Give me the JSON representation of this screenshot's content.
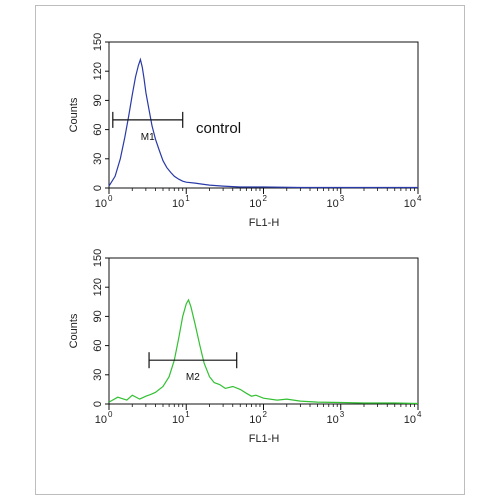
{
  "chart_data": [
    {
      "type": "line",
      "title": "",
      "xlabel": "FL1-H",
      "ylabel": "Counts",
      "xscale": "log",
      "xlim": [
        1,
        10000
      ],
      "ylim": [
        0,
        150
      ],
      "yticks": [
        0,
        30,
        60,
        90,
        120,
        150
      ],
      "xticks": [
        {
          "base": "10",
          "exp": "0"
        },
        {
          "base": "10",
          "exp": "1"
        },
        {
          "base": "10",
          "exp": "2"
        },
        {
          "base": "10",
          "exp": "3"
        },
        {
          "base": "10",
          "exp": "4"
        }
      ],
      "color": "#2a3aa8",
      "annotation": "control",
      "gate": {
        "label": "M1",
        "x_start": 1.12,
        "x_end": 9.0,
        "y": 70
      },
      "series": [
        {
          "x": [
            1.0,
            1.2,
            1.4,
            1.6,
            1.8,
            2.0,
            2.2,
            2.4,
            2.55,
            2.7,
            2.85,
            3.0,
            3.3,
            3.6,
            4.0,
            4.5,
            5.0,
            5.6,
            6.3,
            7.0,
            8.0,
            9.0,
            10,
            13,
            16,
            20,
            30,
            50,
            100,
            300,
            1000,
            10000
          ],
          "y": [
            2,
            12,
            30,
            52,
            74,
            96,
            114,
            126,
            132,
            124,
            112,
            98,
            80,
            64,
            50,
            38,
            28,
            21,
            16,
            12,
            9,
            7,
            6,
            5,
            4,
            3,
            2,
            1,
            1,
            0.5,
            0.5,
            0.5
          ]
        }
      ]
    },
    {
      "type": "line",
      "title": "",
      "xlabel": "FL1-H",
      "ylabel": "Counts",
      "xscale": "log",
      "xlim": [
        1,
        10000
      ],
      "ylim": [
        0,
        150
      ],
      "yticks": [
        0,
        30,
        60,
        90,
        120,
        150
      ],
      "xticks": [
        {
          "base": "10",
          "exp": "0"
        },
        {
          "base": "10",
          "exp": "1"
        },
        {
          "base": "10",
          "exp": "2"
        },
        {
          "base": "10",
          "exp": "3"
        },
        {
          "base": "10",
          "exp": "4"
        }
      ],
      "color": "#33c033",
      "annotation": "",
      "gate": {
        "label": "M2",
        "x_start": 3.3,
        "x_end": 45,
        "y": 45
      },
      "series": [
        {
          "x": [
            1.0,
            1.3,
            1.7,
            2.0,
            2.5,
            3.0,
            3.5,
            4.0,
            5.0,
            6.0,
            7.0,
            8.0,
            9.0,
            10,
            10.7,
            11.5,
            13,
            15,
            17,
            20,
            23,
            27,
            32,
            40,
            50,
            60,
            70,
            80,
            100,
            150,
            200,
            300,
            500,
            1000,
            2000,
            5000,
            10000
          ],
          "y": [
            2,
            7,
            4,
            9,
            5,
            8,
            10,
            12,
            18,
            28,
            45,
            68,
            90,
            103,
            107,
            100,
            82,
            60,
            42,
            28,
            22,
            20,
            16,
            18,
            15,
            11,
            8,
            9,
            6,
            4,
            5,
            3,
            2,
            1.5,
            1,
            1,
            0.5
          ]
        }
      ]
    }
  ]
}
